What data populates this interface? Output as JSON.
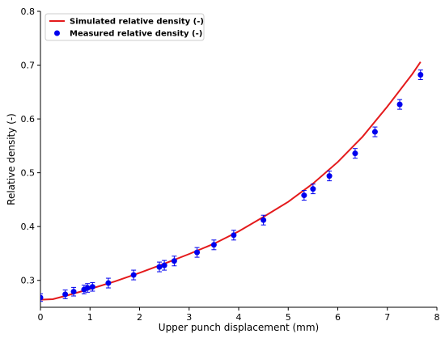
{
  "chart_data": {
    "type": "line",
    "xlabel": "Upper punch displacement (mm)",
    "ylabel": "Relative density (-)",
    "xlim": [
      0,
      8
    ],
    "ylim": [
      0.25,
      0.8
    ],
    "xticks": [
      0,
      1,
      2,
      3,
      4,
      5,
      6,
      7,
      8
    ],
    "yticks": [
      0.3,
      0.4,
      0.5,
      0.6,
      0.7,
      0.8
    ],
    "xtick_labels": [
      "0",
      "1",
      "2",
      "3",
      "4",
      "5",
      "6",
      "7",
      "8"
    ],
    "ytick_labels": [
      "0.3",
      "0.4",
      "0.5",
      "0.6",
      "0.7",
      "0.8"
    ],
    "legend_position": "top-left",
    "series": [
      {
        "name": "Simulated relative density (-)",
        "kind": "line",
        "color": "#e41a1c",
        "points": [
          [
            0,
            0.264
          ],
          [
            0.25,
            0.265
          ],
          [
            0.5,
            0.271
          ],
          [
            1,
            0.284
          ],
          [
            1.5,
            0.298
          ],
          [
            2,
            0.314
          ],
          [
            2.5,
            0.331
          ],
          [
            3,
            0.349
          ],
          [
            3.5,
            0.368
          ],
          [
            4,
            0.391
          ],
          [
            4.5,
            0.418
          ],
          [
            5,
            0.446
          ],
          [
            5.5,
            0.48
          ],
          [
            6,
            0.52
          ],
          [
            6.5,
            0.567
          ],
          [
            7,
            0.623
          ],
          [
            7.5,
            0.683
          ],
          [
            7.67,
            0.706
          ]
        ]
      },
      {
        "name": "Measured relative density (-)",
        "kind": "scatter",
        "color": "#0000ee",
        "points": [
          [
            0,
            0.268,
            0.007
          ],
          [
            0.5,
            0.274,
            0.008
          ],
          [
            0.67,
            0.279,
            0.008
          ],
          [
            0.88,
            0.283,
            0.008
          ],
          [
            0.95,
            0.286,
            0.008
          ],
          [
            1.05,
            0.288,
            0.008
          ],
          [
            1.37,
            0.295,
            0.009
          ],
          [
            1.88,
            0.31,
            0.009
          ],
          [
            2.4,
            0.325,
            0.009
          ],
          [
            2.5,
            0.328,
            0.009
          ],
          [
            2.7,
            0.336,
            0.009
          ],
          [
            3.16,
            0.352,
            0.009
          ],
          [
            3.5,
            0.366,
            0.009
          ],
          [
            3.9,
            0.384,
            0.009
          ],
          [
            4.5,
            0.412,
            0.009
          ],
          [
            5.32,
            0.458,
            0.009
          ],
          [
            5.5,
            0.47,
            0.009
          ],
          [
            5.83,
            0.494,
            0.009
          ],
          [
            6.35,
            0.536,
            0.009
          ],
          [
            6.75,
            0.576,
            0.009
          ],
          [
            7.25,
            0.627,
            0.009
          ],
          [
            7.67,
            0.682,
            0.009
          ]
        ]
      }
    ]
  }
}
